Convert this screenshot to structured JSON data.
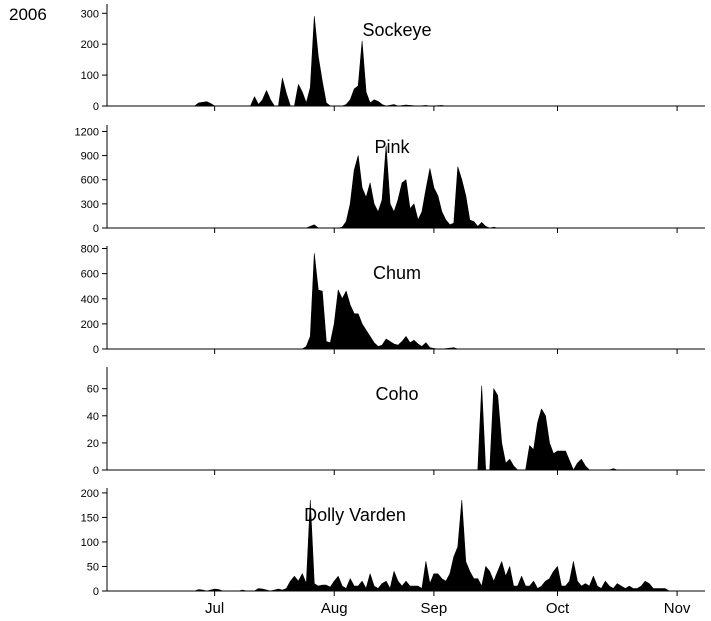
{
  "year": "2006",
  "chart_data": {
    "type": "area",
    "x_axis": {
      "ticks": [
        {
          "day": 5,
          "label": "Jul"
        },
        {
          "day": 35,
          "label": "Aug"
        },
        {
          "day": 60,
          "label": "Sep"
        },
        {
          "day": 91,
          "label": "Oct"
        },
        {
          "day": 121,
          "label": "Nov"
        }
      ],
      "xlim": [
        -22,
        128
      ]
    },
    "panels": [
      {
        "title": "Sockeye",
        "ylim": [
          0,
          330
        ],
        "yticks": [
          0,
          100,
          200,
          300
        ],
        "x": [
          0,
          1,
          2,
          3,
          4,
          5,
          6,
          14,
          15,
          16,
          17,
          18,
          19,
          20,
          21,
          22,
          23,
          24,
          25,
          26,
          27,
          28,
          29,
          30,
          31,
          32,
          33,
          34,
          35,
          36,
          37,
          38,
          39,
          40,
          41,
          42,
          43,
          44,
          45,
          46,
          47,
          48,
          50,
          51,
          53,
          56,
          58,
          59,
          62,
          63,
          66
        ],
        "values": [
          0,
          10,
          12,
          14,
          8,
          0,
          0,
          0,
          30,
          5,
          20,
          50,
          20,
          0,
          0,
          90,
          40,
          0,
          0,
          70,
          45,
          10,
          60,
          290,
          160,
          80,
          10,
          0,
          0,
          0,
          0,
          5,
          20,
          55,
          65,
          210,
          45,
          10,
          20,
          15,
          5,
          0,
          5,
          0,
          3,
          0,
          2,
          0,
          2,
          0,
          0
        ]
      },
      {
        "title": "Pink",
        "ylim": [
          0,
          1280
        ],
        "yticks": [
          0,
          300,
          600,
          900,
          1200
        ],
        "x": [
          28,
          29,
          30,
          31,
          34,
          36,
          37,
          38,
          39,
          40,
          41,
          42,
          43,
          44,
          45,
          46,
          47,
          48,
          49,
          50,
          51,
          52,
          53,
          54,
          55,
          56,
          57,
          58,
          59,
          60,
          61,
          62,
          63,
          64,
          65,
          66,
          67,
          68,
          69,
          70,
          71,
          72,
          73,
          74,
          75,
          76
        ],
        "values": [
          0,
          20,
          40,
          0,
          0,
          0,
          10,
          80,
          300,
          720,
          900,
          500,
          380,
          560,
          300,
          200,
          350,
          1020,
          300,
          200,
          350,
          560,
          600,
          240,
          300,
          100,
          200,
          480,
          740,
          500,
          400,
          200,
          100,
          40,
          60,
          760,
          600,
          400,
          100,
          80,
          20,
          70,
          20,
          0,
          10,
          0
        ]
      },
      {
        "title": "Chum",
        "ylim": [
          0,
          820
        ],
        "yticks": [
          0,
          200,
          400,
          600,
          800
        ],
        "x": [
          27,
          28,
          29,
          30,
          31,
          32,
          33,
          34,
          35,
          36,
          37,
          38,
          39,
          40,
          41,
          42,
          43,
          44,
          45,
          46,
          47,
          48,
          49,
          50,
          51,
          52,
          53,
          54,
          55,
          56,
          57,
          58,
          59,
          60,
          61,
          62,
          65,
          66
        ],
        "values": [
          0,
          20,
          100,
          760,
          470,
          460,
          60,
          50,
          200,
          470,
          400,
          460,
          350,
          280,
          280,
          200,
          150,
          100,
          50,
          20,
          30,
          80,
          60,
          40,
          30,
          60,
          100,
          50,
          70,
          40,
          20,
          50,
          10,
          5,
          0,
          0,
          10,
          0
        ]
      },
      {
        "title": "Coho",
        "ylim": [
          0,
          76
        ],
        "yticks": [
          0,
          20,
          40,
          60
        ],
        "x": [
          71,
          72,
          73,
          74,
          75,
          76,
          77,
          78,
          79,
          80,
          81,
          82,
          83,
          84,
          85,
          86,
          87,
          88,
          89,
          90,
          91,
          92,
          93,
          95,
          96,
          97,
          98,
          99,
          104,
          105,
          106
        ],
        "values": [
          0,
          62,
          0,
          0,
          60,
          55,
          20,
          5,
          8,
          3,
          0,
          0,
          0,
          18,
          15,
          35,
          45,
          40,
          20,
          12,
          14,
          14,
          14,
          0,
          5,
          8,
          3,
          0,
          0,
          1,
          0
        ]
      },
      {
        "title": "Dolly Varden",
        "ylim": [
          0,
          210
        ],
        "yticks": [
          0,
          50,
          100,
          150,
          200
        ],
        "x": [
          -2,
          0,
          1,
          2,
          3,
          4,
          5,
          6,
          7,
          8,
          9,
          10,
          11,
          12,
          13,
          14,
          15,
          16,
          17,
          18,
          19,
          20,
          21,
          22,
          23,
          24,
          25,
          26,
          27,
          28,
          29,
          30,
          31,
          32,
          33,
          34,
          35,
          36,
          37,
          38,
          39,
          40,
          41,
          42,
          43,
          44,
          45,
          46,
          47,
          48,
          49,
          50,
          51,
          52,
          53,
          54,
          55,
          56,
          57,
          58,
          59,
          60,
          61,
          62,
          63,
          64,
          65,
          66,
          67,
          68,
          69,
          70,
          71,
          72,
          73,
          74,
          75,
          76,
          77,
          78,
          79,
          80,
          81,
          82,
          83,
          84,
          85,
          86,
          87,
          88,
          89,
          90,
          91,
          92,
          93,
          94,
          95,
          96,
          97,
          98,
          99,
          100,
          101,
          102,
          103,
          104,
          105,
          106,
          107,
          108,
          109,
          110,
          111,
          112,
          113,
          114,
          115,
          116,
          117,
          118,
          119,
          120,
          121,
          122
        ],
        "values": [
          0,
          0,
          3,
          2,
          0,
          2,
          4,
          3,
          0,
          0,
          0,
          0,
          0,
          2,
          0,
          0,
          0,
          5,
          4,
          2,
          0,
          2,
          4,
          2,
          5,
          20,
          30,
          20,
          35,
          15,
          185,
          15,
          10,
          12,
          12,
          8,
          20,
          30,
          10,
          5,
          25,
          10,
          10,
          20,
          5,
          35,
          10,
          5,
          15,
          20,
          5,
          40,
          20,
          10,
          20,
          10,
          10,
          10,
          5,
          60,
          15,
          35,
          35,
          25,
          20,
          35,
          70,
          90,
          185,
          60,
          40,
          25,
          25,
          10,
          50,
          40,
          20,
          40,
          60,
          30,
          50,
          10,
          10,
          30,
          10,
          10,
          20,
          5,
          10,
          20,
          25,
          40,
          50,
          10,
          10,
          20,
          60,
          20,
          10,
          15,
          10,
          30,
          10,
          5,
          20,
          10,
          5,
          15,
          10,
          5,
          10,
          5,
          5,
          10,
          20,
          15,
          5,
          5,
          5,
          5,
          0,
          0,
          0,
          0
        ]
      }
    ]
  }
}
